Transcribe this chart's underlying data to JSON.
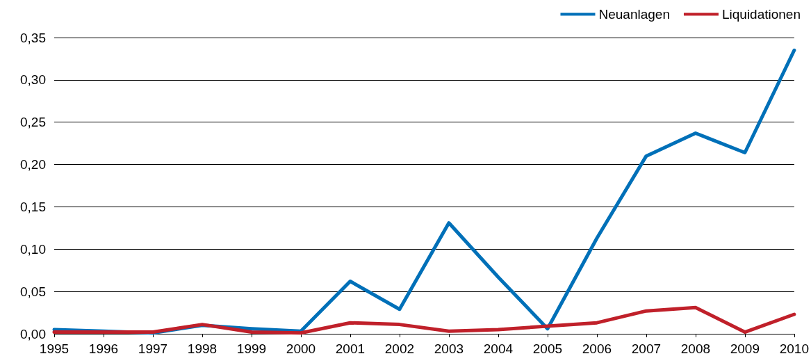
{
  "chart_data": {
    "type": "line",
    "categories": [
      "1995",
      "1996",
      "1997",
      "1998",
      "1999",
      "2000",
      "2001",
      "2002",
      "2003",
      "2004",
      "2005",
      "2006",
      "2007",
      "2008",
      "2009",
      "2010"
    ],
    "series": [
      {
        "name": "Neuanlagen",
        "color": "#0070b8",
        "values": [
          0.005,
          0.003,
          0.001,
          0.01,
          0.006,
          0.003,
          0.062,
          0.029,
          0.131,
          0.067,
          0.006,
          0.113,
          0.21,
          0.237,
          0.214,
          0.335
        ]
      },
      {
        "name": "Liquidationen",
        "color": "#c0202a",
        "values": [
          0.002,
          0.002,
          0.002,
          0.011,
          0.002,
          0.001,
          0.013,
          0.011,
          0.003,
          0.005,
          0.009,
          0.013,
          0.027,
          0.031,
          0.002,
          0.023
        ]
      }
    ],
    "ylim": [
      0,
      0.35
    ],
    "yticks": [
      {
        "value": 0,
        "label": "0,00"
      },
      {
        "value": 0.05,
        "label": "0,05"
      },
      {
        "value": 0.1,
        "label": "0,10"
      },
      {
        "value": 0.15,
        "label": "0,15"
      },
      {
        "value": 0.2,
        "label": "0,20"
      },
      {
        "value": 0.25,
        "label": "0,25"
      },
      {
        "value": 0.3,
        "label": "0,30"
      },
      {
        "value": 0.35,
        "label": "0,35"
      }
    ],
    "grid": "y",
    "legend": "top right",
    "marker": "none",
    "line_style": "solid"
  }
}
